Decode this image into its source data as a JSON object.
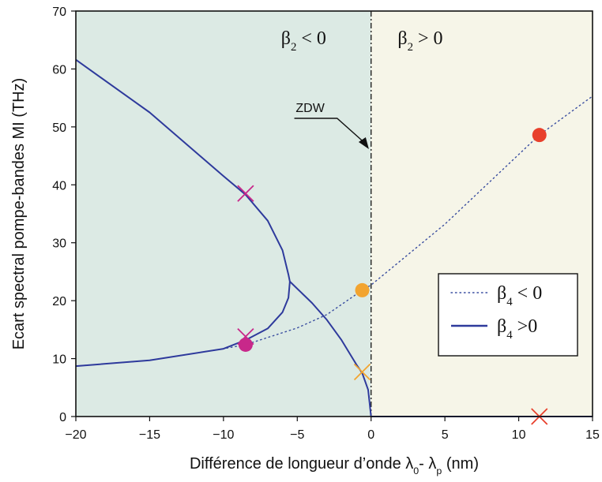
{
  "chart_data": {
    "type": "line",
    "xlabel": "Différence de longueur d’onde λ₀- λₚ (nm)",
    "ylabel": "Ecart spectral pompe-bandes MI (THz)",
    "xlim": [
      -20,
      15
    ],
    "ylim": [
      0,
      70
    ],
    "x_ticks": [
      "−20",
      "−15",
      "−10",
      "−5",
      "0",
      "5",
      "10",
      "15"
    ],
    "y_ticks": [
      "0",
      "10",
      "20",
      "30",
      "40",
      "50",
      "60",
      "70"
    ],
    "regions": [
      {
        "label": "β₂ < 0",
        "x_range": [
          -20,
          0
        ],
        "color": "#dceae4"
      },
      {
        "label": "β₂ > 0",
        "x_range": [
          0,
          15
        ],
        "color": "#f6f5e8"
      }
    ],
    "zdw_label": "ZDW",
    "zdw_x": 0,
    "series": [
      {
        "name": "β₄ < 0",
        "style": "dotted",
        "color": "#3a4ea0",
        "points": [
          [
            -20,
            8.7
          ],
          [
            -15,
            9.7
          ],
          [
            -10,
            11.7
          ],
          [
            -8.5,
            12.4
          ],
          [
            -5,
            15.3
          ],
          [
            -3,
            17.6
          ],
          [
            -0.6,
            21.8
          ],
          [
            0,
            22.7
          ],
          [
            5,
            33.2
          ],
          [
            11.4,
            48.6
          ],
          [
            15,
            55.3
          ]
        ]
      },
      {
        "name": "β₄ >0",
        "style": "solid",
        "color": "#2e3a9c",
        "branches": [
          {
            "points": [
              [
                -20,
                61.6
              ],
              [
                -15,
                52.5
              ],
              [
                -10,
                41.5
              ],
              [
                -8.5,
                38.3
              ],
              [
                -7,
                33.8
              ],
              [
                -6,
                28.7
              ],
              [
                -5.6,
                24.5
              ],
              [
                -5.5,
                23.3
              ]
            ]
          },
          {
            "points": [
              [
                -20,
                8.7
              ],
              [
                -15,
                9.7
              ],
              [
                -10,
                11.7
              ],
              [
                -8.5,
                13.2
              ],
              [
                -7,
                15.2
              ],
              [
                -6,
                18.0
              ],
              [
                -5.6,
                20.5
              ],
              [
                -5.5,
                23.3
              ]
            ]
          },
          {
            "points": [
              [
                -5.5,
                23.3
              ],
              [
                -4,
                19.6
              ],
              [
                -3,
                16.7
              ],
              [
                -2,
                13.2
              ],
              [
                -1,
                9.0
              ],
              [
                -0.6,
                7.5
              ],
              [
                -0.2,
                4.6
              ],
              [
                0,
                0
              ],
              [
                15,
                0
              ]
            ]
          }
        ]
      }
    ],
    "markers": [
      {
        "shape": "circle",
        "x": 11.4,
        "y": 48.6,
        "color": "#e8402c"
      },
      {
        "shape": "circle",
        "x": -0.6,
        "y": 21.8,
        "color": "#f2a430"
      },
      {
        "shape": "circle",
        "x": -8.5,
        "y": 12.4,
        "color": "#c8288a"
      },
      {
        "shape": "cross",
        "x": -8.5,
        "y": 38.5,
        "color": "#c8288a"
      },
      {
        "shape": "cross",
        "x": -8.5,
        "y": 13.8,
        "color": "#c8288a"
      },
      {
        "shape": "cross",
        "x": -0.6,
        "y": 7.7,
        "color": "#f2a430"
      },
      {
        "shape": "cross",
        "x": 11.4,
        "y": 0,
        "color": "#e8402c"
      }
    ],
    "legend": {
      "position": "center-right",
      "entries": [
        {
          "label": "β₄ < 0",
          "style": "dotted"
        },
        {
          "label": "β₄ >0",
          "style": "solid"
        }
      ]
    },
    "grid": false
  }
}
